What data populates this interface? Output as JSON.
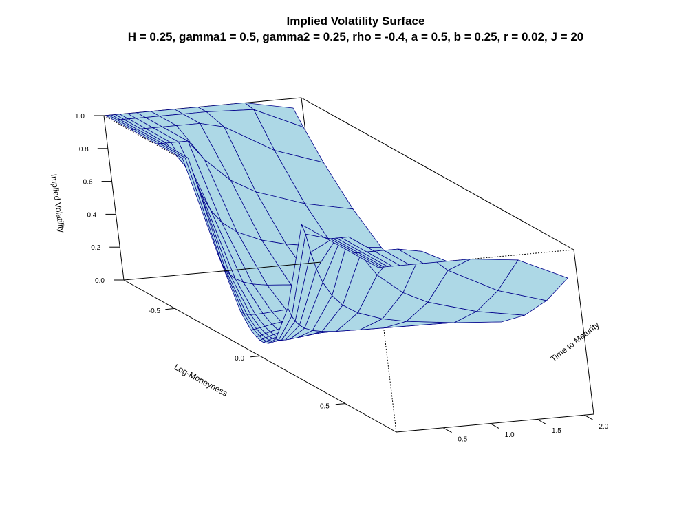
{
  "chart_data": {
    "type": "surface3d",
    "title": "Implied Volatility Surface",
    "subtitle": "H = 0.25, gamma1 = 0.5, gamma2 = 0.25, rho = -0.4, a = 0.5, b = 0.25, r = 0.02, J = 20",
    "xlabel": "Log-Moneyness",
    "ylabel": "Time to Maturity",
    "zlabel": "Implied Volatility",
    "xlim": [
      -0.8,
      0.8
    ],
    "ylim": [
      0.0,
      2.1
    ],
    "zlim": [
      0.0,
      1.0
    ],
    "x_ticks": [
      -0.5,
      0.0,
      0.5
    ],
    "x_tick_labels": [
      "-0.5",
      "0.0",
      "0.5"
    ],
    "y_ticks": [
      0.5,
      1.0,
      1.5,
      2.0
    ],
    "y_tick_labels": [
      "0.5",
      "1.0",
      "1.5",
      "2.0"
    ],
    "z_ticks": [
      0.0,
      0.2,
      0.4,
      0.6,
      0.8,
      1.0
    ],
    "z_tick_labels": [
      "0.0",
      "0.2",
      "0.4",
      "0.6",
      "0.8",
      "1.0"
    ],
    "maturities": [
      0.02,
      0.05,
      0.08,
      0.12,
      0.17,
      0.25,
      0.35,
      0.5,
      0.75,
      1.0,
      1.5,
      2.0
    ],
    "log_moneyness": [
      -0.8,
      -0.75,
      -0.65,
      -0.5,
      -0.35,
      -0.2,
      -0.1,
      -0.05,
      -0.02,
      0.0,
      0.02,
      0.05,
      0.1,
      0.2,
      0.35,
      0.5,
      0.65,
      0.8
    ],
    "surface_color": "#add8e6",
    "grid_line_color": "#00008b",
    "box_color": "#000000"
  }
}
